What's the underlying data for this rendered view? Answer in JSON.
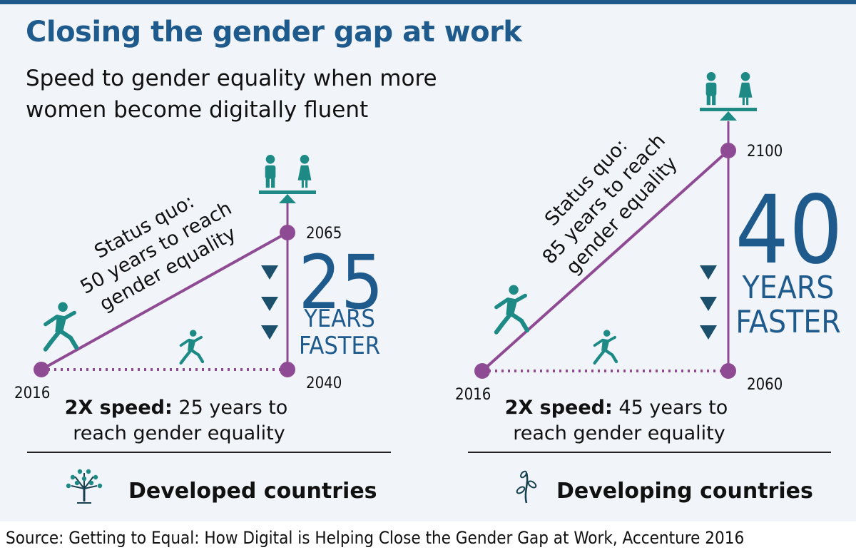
{
  "title": "Closing the gender gap at work",
  "subtitle": "Speed to gender equality when more women become digitally fluent",
  "source": "Source: Getting to Equal: How Digital is Helping Close the Gender Gap at Work, Accenture 2016",
  "colors": {
    "title": "#1f5a8d",
    "status_quo_line": "#8e4b94",
    "accelerated_line": "#8e4b94",
    "icon": "#1d8a86",
    "arrow": "#1b4f6b",
    "big_number": "#1f5a8d"
  },
  "chart_data": [
    {
      "type": "line",
      "group_label": "Developed countries",
      "group_icon": "tree-icon",
      "start_year": 2016,
      "status_quo": {
        "label_lines": [
          "Status quo:",
          "50 years to reach",
          "gender equality"
        ],
        "end_year": 2065
      },
      "accelerated": {
        "speed_label": "2X speed:",
        "label_rest": "25 years to",
        "label_line2": "reach gender equality",
        "end_year": 2040
      },
      "years_faster": 25,
      "years_faster_label": [
        "YEARS",
        "FASTER"
      ],
      "tick_labels": [
        "2016",
        "2065",
        "2040"
      ]
    },
    {
      "type": "line",
      "group_label": "Developing countries",
      "group_icon": "sapling-icon",
      "start_year": 2016,
      "status_quo": {
        "label_lines": [
          "Status quo:",
          "85 years to reach",
          "gender equality"
        ],
        "end_year": 2100
      },
      "accelerated": {
        "speed_label": "2X speed:",
        "label_rest": "45 years to",
        "label_line2": "reach gender equality",
        "end_year": 2060
      },
      "years_faster": 40,
      "years_faster_label": [
        "YEARS",
        "FASTER"
      ],
      "tick_labels": [
        "2016",
        "2100",
        "2060"
      ]
    }
  ]
}
